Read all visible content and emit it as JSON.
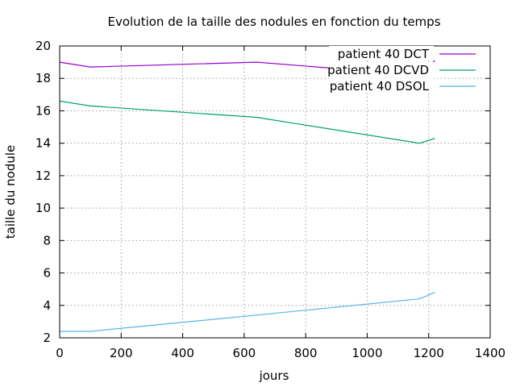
{
  "chart_data": {
    "type": "line",
    "title": "Evolution de la taille des nodules en fonction du temps",
    "xlabel": "jours",
    "ylabel": "taille du nodule",
    "xlim": [
      0,
      1400
    ],
    "ylim": [
      2,
      20
    ],
    "xticks": [
      0,
      200,
      400,
      600,
      800,
      1000,
      1200,
      1400
    ],
    "yticks": [
      2,
      4,
      6,
      8,
      10,
      12,
      14,
      16,
      18,
      20
    ],
    "grid": true,
    "legend_position": "top-right",
    "series": [
      {
        "name": "patient 40 DCT",
        "color": "#9400d3",
        "x": [
          0,
          100,
          640,
          1170,
          1220
        ],
        "y": [
          19.0,
          18.7,
          19.0,
          18.2,
          19.1
        ]
      },
      {
        "name": "patient 40 DCVD",
        "color": "#009e73",
        "x": [
          0,
          100,
          640,
          1170,
          1220
        ],
        "y": [
          16.6,
          16.3,
          15.6,
          14.0,
          14.3
        ]
      },
      {
        "name": "patient 40 DSOL",
        "color": "#56b4e9",
        "x": [
          0,
          100,
          640,
          1170,
          1220
        ],
        "y": [
          2.4,
          2.4,
          3.4,
          4.4,
          4.8
        ]
      }
    ]
  }
}
